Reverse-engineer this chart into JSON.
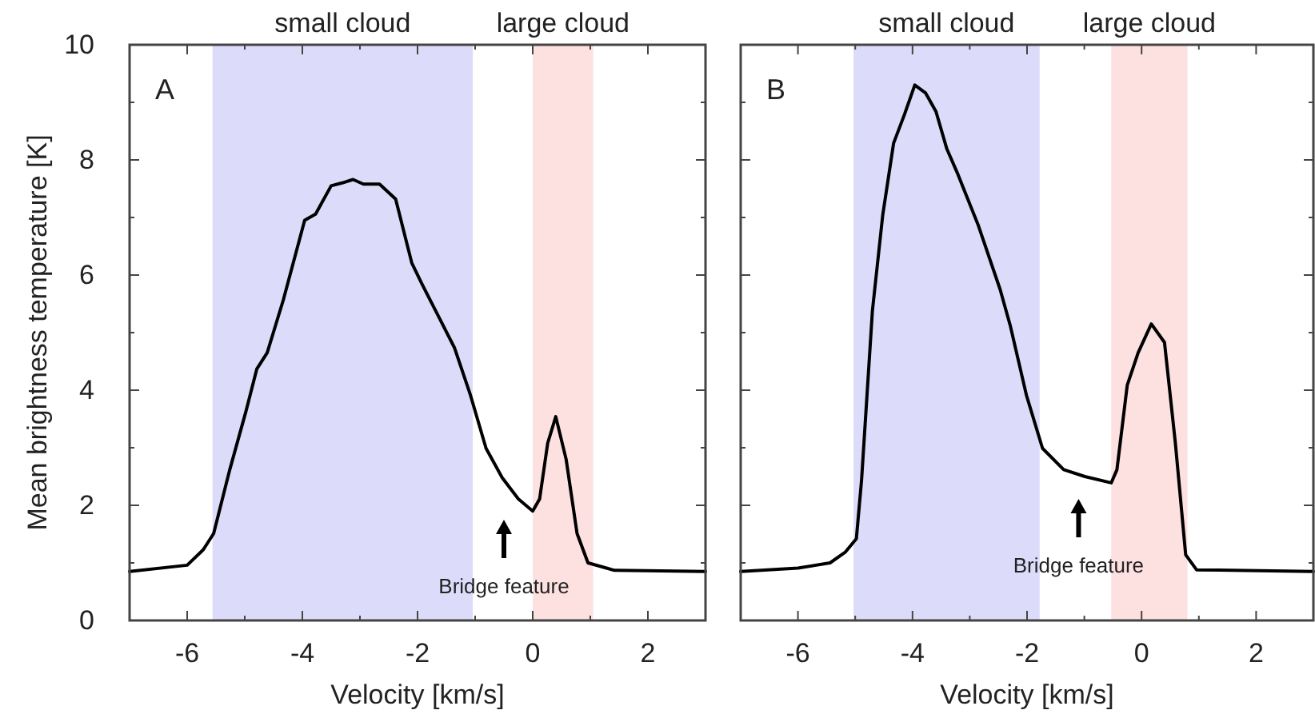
{
  "chart_data": [
    {
      "type": "line",
      "xlabel": "Velocity [km/s]",
      "ylabel": "Mean brightness temperature [K]",
      "x": [
        -7,
        -6,
        -5.72,
        -5.54,
        -5.26,
        -4.98,
        -4.79,
        -4.61,
        -4.33,
        -3.96,
        -3.77,
        -3.5,
        -3.31,
        -3.12,
        -2.94,
        -2.66,
        -2.38,
        -2.1,
        -1.92,
        -1.64,
        -1.36,
        -1.08,
        -0.81,
        -0.53,
        -0.25,
        0,
        0.12,
        0.26,
        0.4,
        0.58,
        0.77,
        0.96,
        1.42,
        3
      ],
      "values": [
        0.85,
        0.96,
        1.23,
        1.51,
        2.62,
        3.63,
        4.37,
        4.65,
        5.57,
        6.95,
        7.06,
        7.55,
        7.6,
        7.66,
        7.58,
        7.58,
        7.32,
        6.21,
        5.84,
        5.29,
        4.74,
        3.91,
        2.99,
        2.48,
        2.11,
        1.9,
        2.11,
        3.08,
        3.54,
        2.8,
        1.51,
        1.0,
        0.87,
        0.85
      ],
      "color": "#000000",
      "xlim": [
        -7,
        3
      ],
      "ylim": [
        0,
        10
      ],
      "xticks": [
        {
          "value": -7,
          "label": null
        },
        -6,
        {
          "value": -5,
          "label": null
        },
        -4,
        {
          "value": -3,
          "label": null
        },
        -2,
        {
          "value": -1,
          "label": null
        },
        0,
        {
          "value": 1,
          "label": null
        },
        2,
        {
          "value": 3,
          "label": null
        }
      ],
      "yticks": [
        0,
        {
          "value": 1,
          "label": null
        },
        2,
        {
          "value": 3,
          "label": null
        },
        4,
        {
          "value": 5,
          "label": null
        },
        6,
        {
          "value": 7,
          "label": null
        },
        8,
        {
          "value": 9,
          "label": null
        },
        10
      ],
      "bands": [
        {
          "axis": "x",
          "from": -5.56,
          "to": -1.04,
          "label": "small cloud",
          "color": "#dcdcfa"
        },
        {
          "axis": "x",
          "from": 0,
          "to": 1.05,
          "label": "large cloud",
          "color": "#fde0e0"
        }
      ],
      "annotations": [
        "A",
        "Bridge feature"
      ]
    },
    {
      "type": "line",
      "xlabel": "Velocity [km/s]",
      "tick_labels": "x",
      "x": [
        -7,
        -6,
        -5.44,
        -5.17,
        -4.98,
        -4.89,
        -4.7,
        -4.52,
        -4.33,
        -4.14,
        -3.96,
        -3.77,
        -3.59,
        -3.4,
        -3.22,
        -2.85,
        -2.47,
        -2.29,
        -2.01,
        -1.73,
        -1.36,
        -0.99,
        -0.53,
        -0.43,
        -0.25,
        -0.06,
        0.17,
        0.4,
        0.59,
        0.77,
        0.96,
        3
      ],
      "values": [
        0.85,
        0.91,
        1.0,
        1.19,
        1.42,
        2.43,
        5.38,
        7.04,
        8.29,
        8.79,
        9.3,
        9.16,
        8.84,
        8.19,
        7.78,
        6.86,
        5.75,
        5.11,
        3.91,
        2.99,
        2.62,
        2.5,
        2.39,
        2.62,
        4.09,
        4.65,
        5.15,
        4.83,
        3.08,
        1.14,
        0.88,
        0.85
      ],
      "color": "#000000",
      "xlim": [
        -7,
        3
      ],
      "ylim": [
        0,
        10
      ],
      "xticks": [
        {
          "value": -7,
          "label": null
        },
        -6,
        {
          "value": -5,
          "label": null
        },
        -4,
        {
          "value": -3,
          "label": null
        },
        -2,
        {
          "value": -1,
          "label": null
        },
        0,
        {
          "value": 1,
          "label": null
        },
        2,
        {
          "value": 3,
          "label": null
        }
      ],
      "yticks": [
        0,
        {
          "value": 1,
          "label": null
        },
        2,
        {
          "value": 3,
          "label": null
        },
        4,
        {
          "value": 5,
          "label": null
        },
        6,
        {
          "value": 7,
          "label": null
        },
        8,
        {
          "value": 9,
          "label": null
        },
        10
      ],
      "bands": [
        {
          "axis": "x",
          "from": -5.03,
          "to": -1.78,
          "label": "small cloud",
          "color": "#dcdcfa"
        },
        {
          "axis": "x",
          "from": -0.53,
          "to": 0.8,
          "label": "large cloud",
          "color": "#fde0e0"
        }
      ],
      "annotations": [
        "B",
        "Bridge feature"
      ]
    }
  ]
}
